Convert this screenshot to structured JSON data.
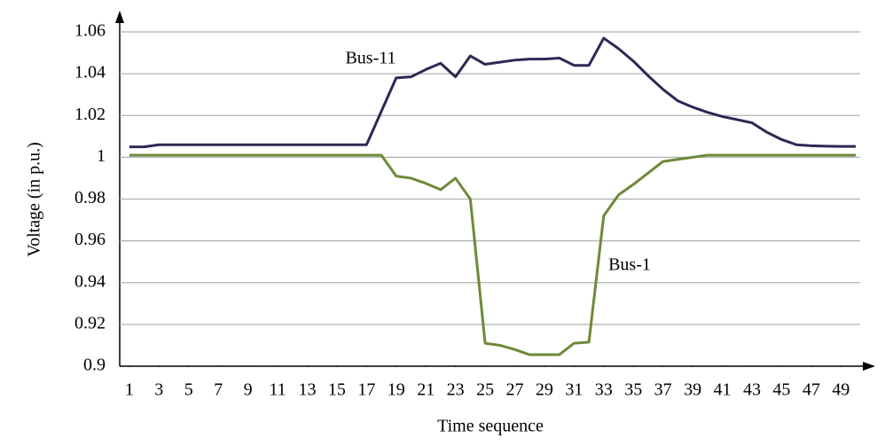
{
  "chart_data": {
    "type": "line",
    "x_label": "Time sequence",
    "y_label": "Voltage (in p.u.)",
    "x": [
      1,
      2,
      3,
      4,
      5,
      6,
      7,
      8,
      9,
      10,
      11,
      12,
      13,
      14,
      15,
      16,
      17,
      18,
      19,
      20,
      21,
      22,
      23,
      24,
      25,
      26,
      27,
      28,
      29,
      30,
      31,
      32,
      33,
      34,
      35,
      36,
      37,
      38,
      39,
      40,
      41,
      42,
      43,
      44,
      45,
      46,
      47,
      48,
      49,
      50
    ],
    "xlim": [
      0.35,
      50.3
    ],
    "xticks": [
      1,
      3,
      5,
      7,
      9,
      11,
      13,
      15,
      17,
      19,
      21,
      23,
      25,
      27,
      29,
      31,
      33,
      35,
      37,
      39,
      41,
      43,
      45,
      47,
      49
    ],
    "ylim": [
      0.9,
      1.06
    ],
    "yticks": [
      0.9,
      0.92,
      0.94,
      0.96,
      0.98,
      1,
      1.02,
      1.04,
      1.06
    ],
    "grid": true,
    "series": [
      {
        "name": "Bus-11",
        "color": "#2b2a55",
        "values": [
          1.005,
          1.005,
          1.006,
          1.006,
          1.006,
          1.006,
          1.006,
          1.006,
          1.006,
          1.006,
          1.006,
          1.006,
          1.006,
          1.006,
          1.006,
          1.006,
          1.006,
          1.022,
          1.038,
          1.0385,
          1.042,
          1.045,
          1.0385,
          1.0485,
          1.0445,
          1.0455,
          1.0465,
          1.047,
          1.047,
          1.0475,
          1.044,
          1.044,
          1.057,
          1.052,
          1.046,
          1.039,
          1.0325,
          1.027,
          1.024,
          1.0215,
          1.0195,
          1.018,
          1.0165,
          1.012,
          1.0085,
          1.006,
          1.0055,
          1.0053,
          1.0052,
          1.0052
        ]
      },
      {
        "name": "Bus-1",
        "color": "#6e8a3a",
        "values": [
          1.001,
          1.001,
          1.001,
          1.001,
          1.001,
          1.001,
          1.001,
          1.001,
          1.001,
          1.001,
          1.001,
          1.001,
          1.001,
          1.001,
          1.001,
          1.001,
          1.001,
          1.001,
          0.991,
          0.99,
          0.9875,
          0.9845,
          0.99,
          0.98,
          0.911,
          0.91,
          0.908,
          0.9055,
          0.9055,
          0.9055,
          0.911,
          0.9115,
          0.972,
          0.982,
          0.987,
          0.9925,
          0.998,
          0.999,
          1.0,
          1.001,
          1.001,
          1.001,
          1.001,
          1.001,
          1.001,
          1.001,
          1.001,
          1.001,
          1.001,
          1.001
        ]
      }
    ]
  }
}
